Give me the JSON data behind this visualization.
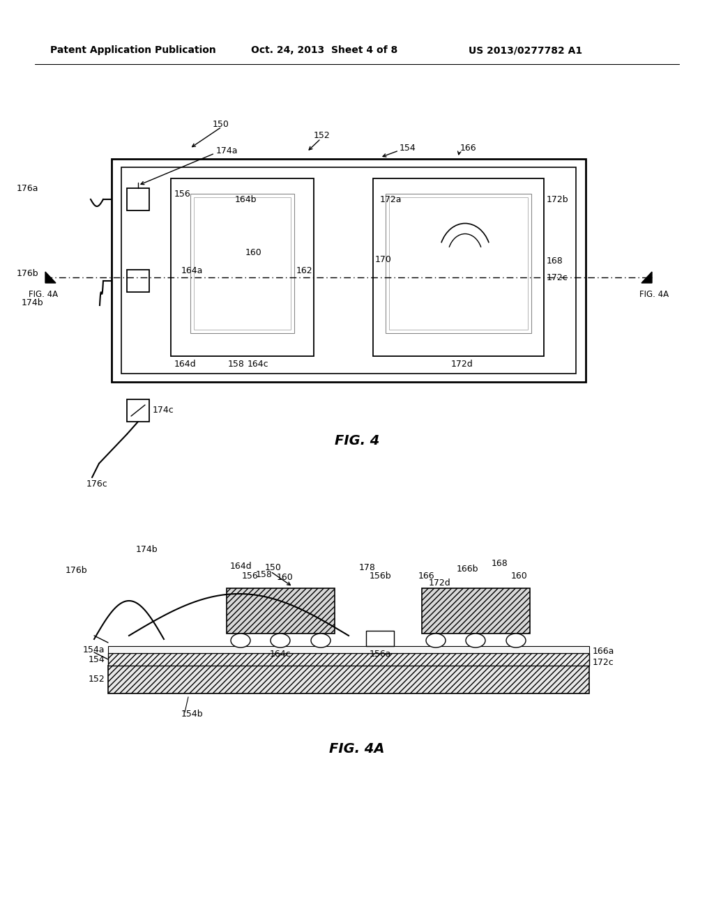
{
  "bg": "#ffffff",
  "hdr_left": "Patent Application Publication",
  "hdr_mid": "Oct. 24, 2013  Sheet 4 of 8",
  "hdr_right": "US 2013/0277782 A1",
  "cap4": "FIG. 4",
  "cap4a": "FIG. 4A"
}
